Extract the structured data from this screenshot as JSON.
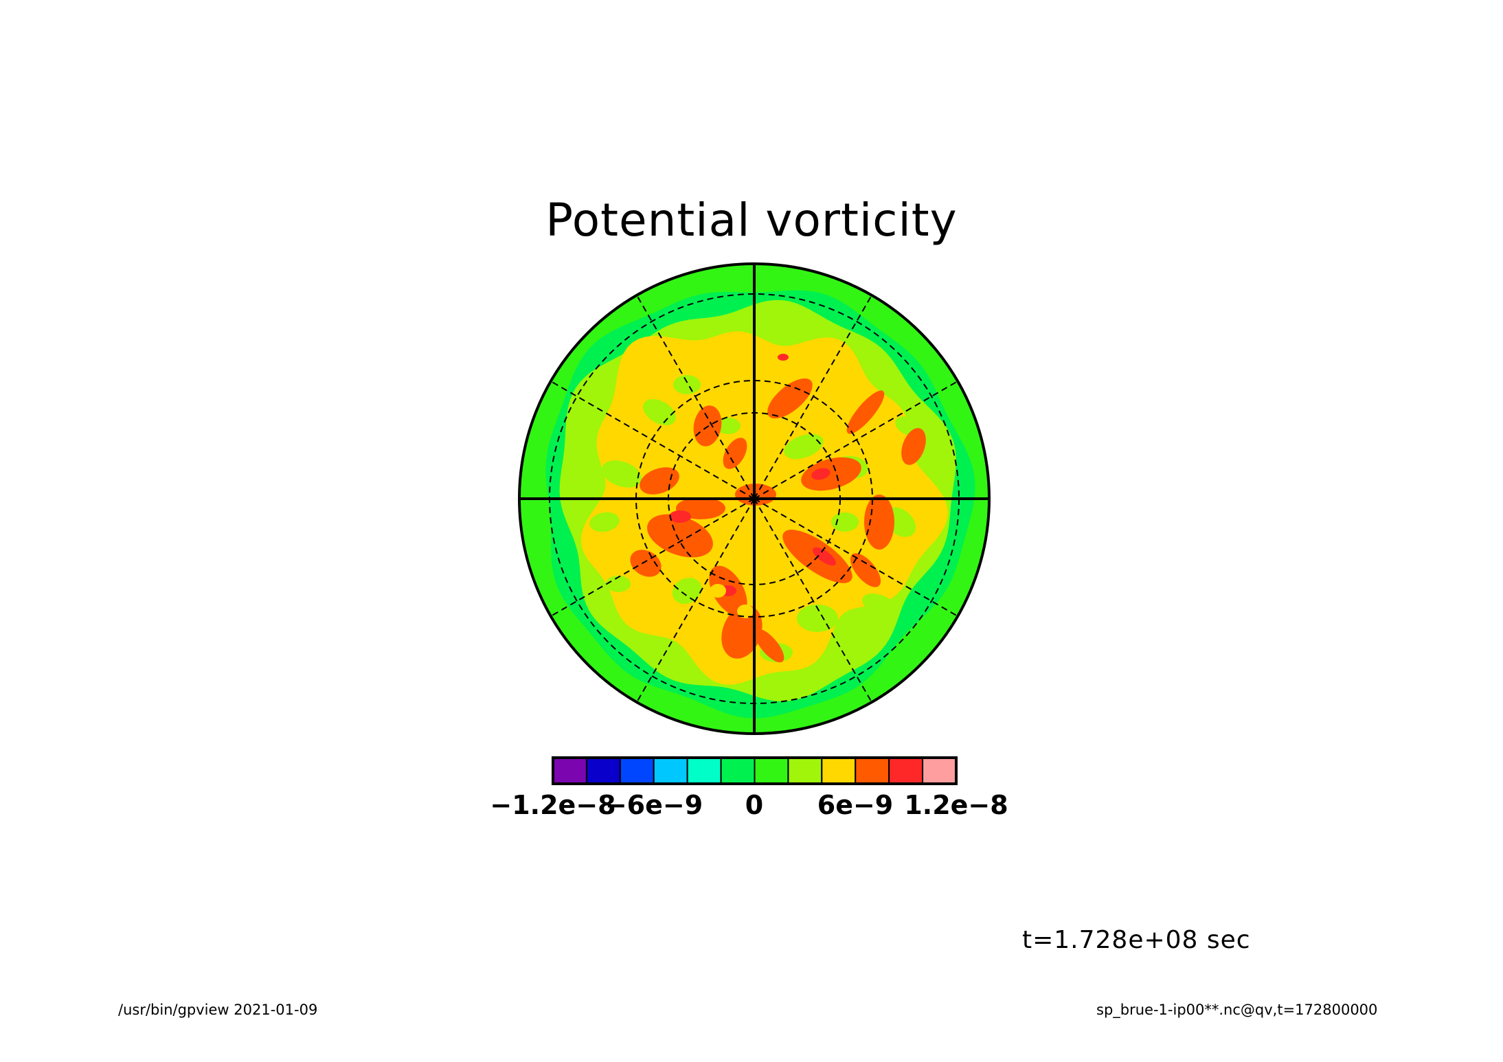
{
  "chart_data": {
    "type": "heatmap",
    "projection": "polar-stereographic",
    "title": "Potential vorticity",
    "colorbar": {
      "colors": [
        "#7b06b0",
        "#0a00cc",
        "#0046ff",
        "#00c8ff",
        "#00ffc8",
        "#00f050",
        "#32f514",
        "#a0f50a",
        "#ffd800",
        "#ff5a00",
        "#ff2828",
        "#ff9e9e"
      ],
      "tick_values": [
        -1.2e-08,
        -6e-09,
        0,
        6e-09,
        1.2e-08
      ],
      "tick_labels": [
        "−1.2e−8",
        "−6e−9",
        "0",
        "6e−9",
        "1.2e−8"
      ]
    },
    "grid": true,
    "annotation": "t=1.728e+08 sec"
  },
  "footer": {
    "left": "/usr/bin/gpview  2021-01-09",
    "right": "sp_brue-1-ip00**.nc@qv,t=172800000"
  }
}
